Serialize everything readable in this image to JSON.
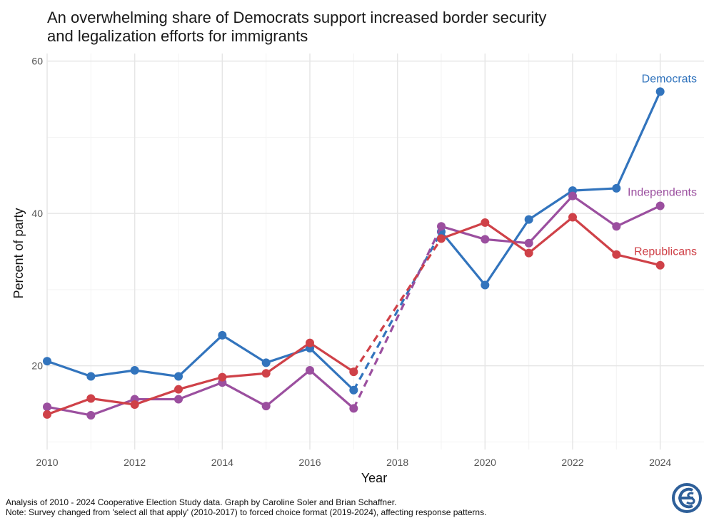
{
  "title_line1": "An overwhelming share of Democrats support increased border security",
  "title_line2": "and legalization efforts for immigrants",
  "caption_line1": "Analysis of 2010 - 2024 Cooperative Election Study data. Graph by Caroline Soler and Brian Schaffner.",
  "caption_line2": "Note: Survey changed from 'select all that apply' (2010-2017) to forced choice format (2019-2024), affecting response patterns.",
  "logo_icon": "ces-logo-icon",
  "chart_data": {
    "type": "line",
    "xlabel": "Year",
    "ylabel": "Percent of party",
    "xlim": [
      2010,
      2025
    ],
    "ylim": [
      9,
      61
    ],
    "x_ticks": [
      2010,
      2012,
      2014,
      2016,
      2018,
      2020,
      2022,
      2024
    ],
    "y_ticks": [
      20,
      40,
      60
    ],
    "grid": true,
    "legend": "direct labels at line ends",
    "series": [
      {
        "name": "Democrats",
        "color": "#3274bd",
        "x": [
          2010,
          2011,
          2012,
          2013,
          2014,
          2015,
          2016,
          2017,
          2019,
          2020,
          2021,
          2022,
          2023,
          2024
        ],
        "values": [
          20.6,
          18.6,
          19.4,
          18.6,
          24.0,
          20.4,
          22.3,
          16.8,
          37.6,
          30.6,
          39.2,
          43.0,
          43.3,
          56.0
        ]
      },
      {
        "name": "Independents",
        "color": "#9b4f9f",
        "x": [
          2010,
          2011,
          2012,
          2013,
          2014,
          2015,
          2016,
          2017,
          2019,
          2020,
          2021,
          2022,
          2023,
          2024
        ],
        "values": [
          14.6,
          13.5,
          15.6,
          15.6,
          17.8,
          14.7,
          19.4,
          14.4,
          38.3,
          36.6,
          36.1,
          42.3,
          38.3,
          41.0
        ]
      },
      {
        "name": "Republicans",
        "color": "#cf4148",
        "x": [
          2010,
          2011,
          2012,
          2013,
          2014,
          2015,
          2016,
          2017,
          2019,
          2020,
          2021,
          2022,
          2023,
          2024
        ],
        "values": [
          13.6,
          15.7,
          14.9,
          16.9,
          18.5,
          19.0,
          23.0,
          19.2,
          36.7,
          38.8,
          34.8,
          39.5,
          34.6,
          33.2
        ]
      }
    ]
  }
}
